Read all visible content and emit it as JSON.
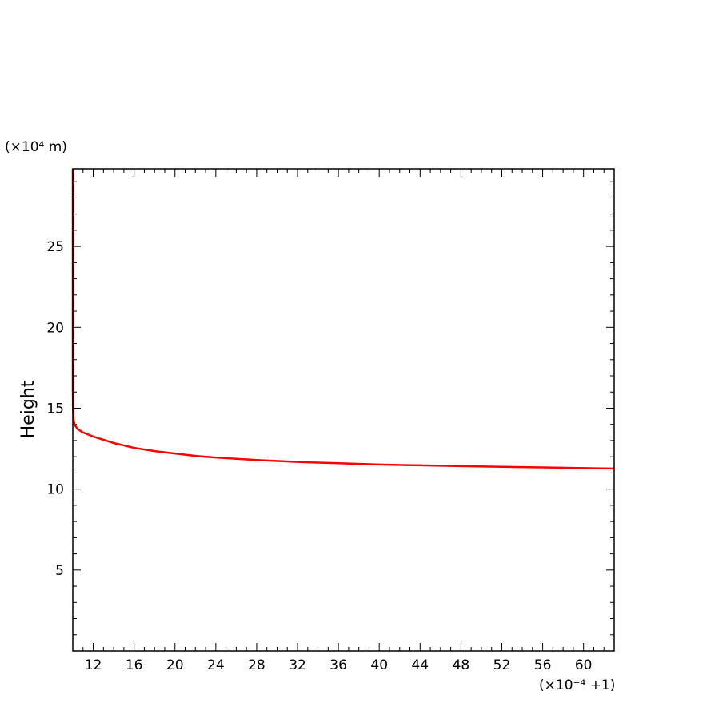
{
  "chart_data": {
    "type": "line",
    "title": "",
    "xlabel": "",
    "ylabel": "Height",
    "y_scale_note": "(×10⁴ m)",
    "x_scale_note": "(×10⁻⁴ +1)",
    "xlim": [
      10,
      63
    ],
    "ylim": [
      0,
      29.8
    ],
    "x_ticks": [
      12,
      16,
      20,
      24,
      28,
      32,
      36,
      40,
      44,
      48,
      52,
      56,
      60
    ],
    "y_ticks": [
      5,
      10,
      15,
      20,
      25
    ],
    "grid": false,
    "legend": "none",
    "series": [
      {
        "color": "#ff0000",
        "x": [
          10.0,
          10.0,
          10.0,
          10.02,
          10.05,
          10.1,
          10.2,
          10.5,
          11.0,
          12.0,
          13.0,
          14.0,
          16.0,
          18.0,
          20.0,
          22.0,
          24.0,
          28.0,
          32.0,
          36.0,
          40.0,
          44.0,
          48.0,
          52.0,
          56.0,
          60.0,
          63.0
        ],
        "y": [
          29.8,
          20.0,
          16.0,
          15.0,
          14.5,
          14.2,
          13.95,
          13.7,
          13.5,
          13.25,
          13.05,
          12.85,
          12.55,
          12.35,
          12.2,
          12.05,
          11.95,
          11.8,
          11.68,
          11.6,
          11.52,
          11.47,
          11.42,
          11.38,
          11.34,
          11.3,
          11.27
        ]
      }
    ]
  }
}
